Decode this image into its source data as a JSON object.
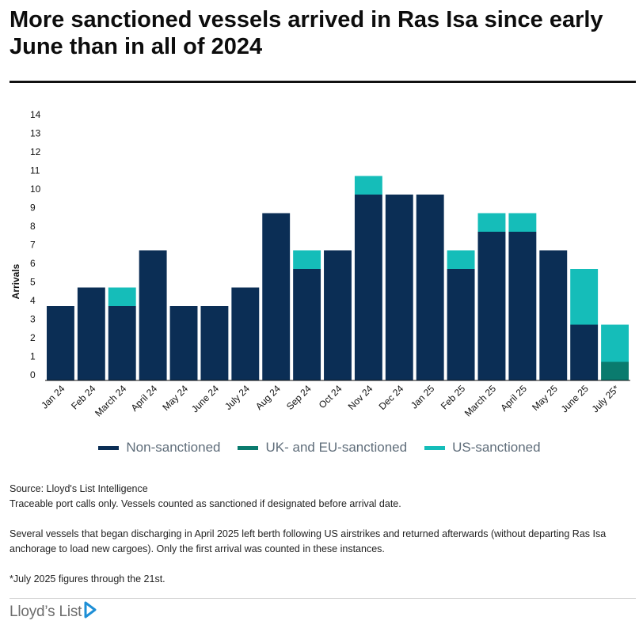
{
  "title": "More sanctioned vessels arrived in Ras Isa since early June than in all of 2024",
  "colors": {
    "non_sanctioned": "#0b2e55",
    "uk_eu_sanctioned": "#0a7b6e",
    "us_sanctioned": "#15bdb9",
    "logo_accent": "#1e8fd6"
  },
  "chart_data": {
    "type": "bar",
    "stacked": true,
    "ylabel": "Arrivals",
    "xlabel": "",
    "ylim": [
      0,
      14
    ],
    "yticks": [
      0,
      1,
      2,
      3,
      4,
      5,
      6,
      7,
      8,
      9,
      10,
      11,
      12,
      13,
      14
    ],
    "grid": false,
    "categories": [
      "Jan 24",
      "Feb 24",
      "March 24",
      "April 24",
      "May 24",
      "June 24",
      "July 24",
      "Aug 24",
      "Sep 24",
      "Oct 24",
      "Nov 24",
      "Dec 24",
      "Jan 25",
      "Feb 25",
      "March 25",
      "April 25",
      "May 25",
      "June 25",
      "July 25*"
    ],
    "series": [
      {
        "name": "Non-sanctioned",
        "color_key": "non_sanctioned",
        "values": [
          4,
          5,
          4,
          7,
          4,
          4,
          5,
          9,
          6,
          7,
          10,
          10,
          10,
          6,
          8,
          8,
          7,
          3,
          0
        ]
      },
      {
        "name": "UK- and EU-sanctioned",
        "color_key": "uk_eu_sanctioned",
        "values": [
          0,
          0,
          0,
          0,
          0,
          0,
          0,
          0,
          0,
          0,
          0,
          0,
          0,
          0,
          0,
          0,
          0,
          0,
          1
        ]
      },
      {
        "name": "US-sanctioned",
        "color_key": "us_sanctioned",
        "values": [
          0,
          0,
          1,
          0,
          0,
          0,
          0,
          0,
          1,
          0,
          1,
          0,
          0,
          1,
          1,
          1,
          0,
          3,
          2
        ]
      }
    ],
    "legend_position": "bottom"
  },
  "notes": {
    "source": "Source: Lloyd's List Intelligence",
    "traceable": "Traceable port calls only. Vessels counted as sanctioned if designated before arrival date.",
    "discharging": "Several vessels that began discharging in April 2025 left berth following US airstrikes and returned afterwards (without departing Ras Isa anchorage to load new cargoes). Only the first arrival was counted in these instances.",
    "july": "*July 2025 figures through the 21st."
  },
  "logo": {
    "text": "Lloyd’s List",
    "icon": "lloyds-list-play-icon"
  }
}
